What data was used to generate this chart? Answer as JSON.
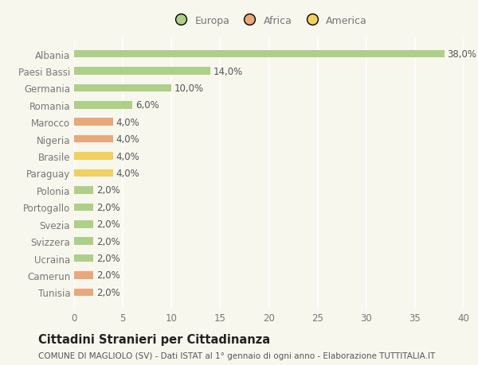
{
  "categories": [
    "Tunisia",
    "Camerun",
    "Ucraina",
    "Svizzera",
    "Svezia",
    "Portogallo",
    "Polonia",
    "Paraguay",
    "Brasile",
    "Nigeria",
    "Marocco",
    "Romania",
    "Germania",
    "Paesi Bassi",
    "Albania"
  ],
  "values": [
    2.0,
    2.0,
    2.0,
    2.0,
    2.0,
    2.0,
    2.0,
    4.0,
    4.0,
    4.0,
    4.0,
    6.0,
    10.0,
    14.0,
    38.0
  ],
  "continents": [
    "Africa",
    "Africa",
    "Europa",
    "Europa",
    "Europa",
    "Europa",
    "Europa",
    "America",
    "America",
    "Africa",
    "Africa",
    "Europa",
    "Europa",
    "Europa",
    "Europa"
  ],
  "labels": [
    "2,0%",
    "2,0%",
    "2,0%",
    "2,0%",
    "2,0%",
    "2,0%",
    "2,0%",
    "4,0%",
    "4,0%",
    "4,0%",
    "4,0%",
    "6,0%",
    "10,0%",
    "14,0%",
    "38,0%"
  ],
  "colors": {
    "Europa": "#aecf88",
    "Africa": "#e8a87c",
    "America": "#f2d060"
  },
  "legend_labels": [
    "Europa",
    "Africa",
    "America"
  ],
  "legend_colors": [
    "#aecf88",
    "#e8a87c",
    "#f2d060"
  ],
  "title": "Cittadini Stranieri per Cittadinanza",
  "subtitle": "COMUNE DI MAGLIOLO (SV) - Dati ISTAT al 1° gennaio di ogni anno - Elaborazione TUTTITALIA.IT",
  "xlim": [
    0,
    40
  ],
  "xticks": [
    0,
    5,
    10,
    15,
    20,
    25,
    30,
    35,
    40
  ],
  "bg_color": "#f7f7ee",
  "plot_bg_color": "#f7f7ee",
  "grid_color": "#ffffff",
  "bar_height": 0.45,
  "label_fontsize": 8.5,
  "tick_fontsize": 8.5,
  "title_fontsize": 10.5,
  "subtitle_fontsize": 7.5,
  "label_color": "#555555",
  "tick_color": "#777777"
}
